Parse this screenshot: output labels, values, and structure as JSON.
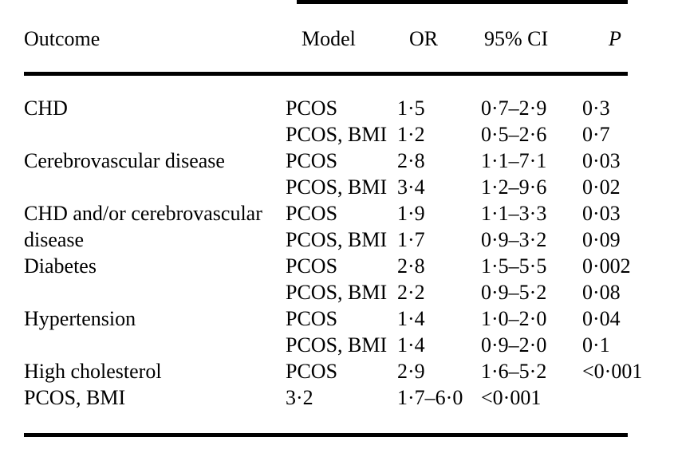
{
  "table": {
    "headers": {
      "outcome": "Outcome",
      "model": "Model",
      "or": "OR",
      "ci": "95% CI",
      "p": "P"
    },
    "rows": [
      {
        "outcome": "CHD",
        "model": "PCOS",
        "or": "1·5",
        "ci": "0·7–2·9",
        "p": "0·3"
      },
      {
        "outcome": "",
        "model": "PCOS, BMI",
        "or": "1·2",
        "ci": "0·5–2·6",
        "p": "0·7"
      },
      {
        "outcome": "Cerebrovascular disease",
        "model": "PCOS",
        "or": "2·8",
        "ci": "1·1–7·1",
        "p": "0·03"
      },
      {
        "outcome": "",
        "model": "PCOS, BMI",
        "or": "3·4",
        "ci": "1·2–9·6",
        "p": "0·02"
      },
      {
        "outcome": "CHD and/or cerebrovascular",
        "model": "PCOS",
        "or": "1·9",
        "ci": "1·1–3·3",
        "p": "0·03"
      },
      {
        "outcome": "disease",
        "model": "PCOS, BMI",
        "or": "1·7",
        "ci": "0·9–3·2",
        "p": "0·09"
      },
      {
        "outcome": "Diabetes",
        "model": "PCOS",
        "or": "2·8",
        "ci": "1·5–5·5",
        "p": "0·002"
      },
      {
        "outcome": "",
        "model": "PCOS, BMI",
        "or": "2·2",
        "ci": "0·9–5·2",
        "p": "0·08"
      },
      {
        "outcome": "Hypertension",
        "model": "PCOS",
        "or": "1·4",
        "ci": "1·0–2·0",
        "p": "0·04"
      },
      {
        "outcome": "",
        "model": "PCOS, BMI",
        "or": "1·4",
        "ci": "0·9–2·0",
        "p": "0·1"
      },
      {
        "outcome": "High cholesterol",
        "model": "PCOS",
        "or": "2·9",
        "ci": "1·6–5·2",
        "p": "<0·001"
      },
      {
        "outcome": "PCOS, BMI",
        "model": "3·2",
        "or": "1·7–6·0",
        "ci": "<0·001",
        "p": ""
      }
    ]
  },
  "colors": {
    "background": "#ffffff",
    "text": "#000000",
    "rule": "#000000"
  }
}
